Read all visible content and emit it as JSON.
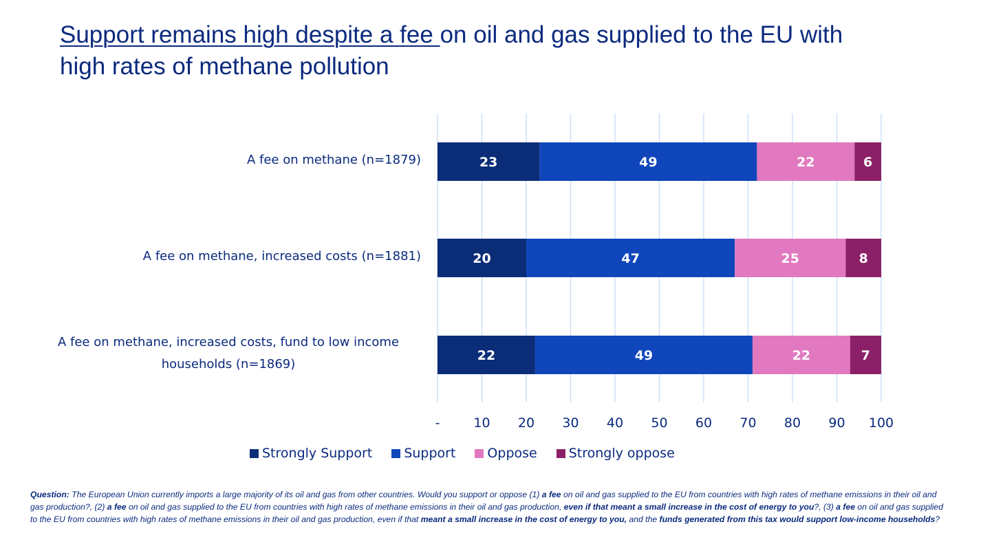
{
  "title": {
    "underlined": "Support remains high despite a fee ",
    "rest": "on oil and gas supplied to the EU with high rates of methane pollution"
  },
  "colors": {
    "strongly_support": "#0b2d78",
    "support": "#1046bb",
    "oppose": "#e279c0",
    "strongly_oppose": "#8c2068",
    "grid": "#cfe0f7",
    "text": "#0b2a7e"
  },
  "chart_data": {
    "type": "bar",
    "orientation": "horizontal",
    "stacked": true,
    "categories": [
      "A fee on methane (n=1879)",
      "A fee on methane, increased costs (n=1881)",
      "A fee on methane, increased costs, fund to low income households (n=1869)"
    ],
    "series": [
      {
        "name": "Strongly Support",
        "values": [
          23,
          20,
          22
        ]
      },
      {
        "name": "Support",
        "values": [
          49,
          47,
          49
        ]
      },
      {
        "name": "Oppose",
        "values": [
          22,
          25,
          22
        ]
      },
      {
        "name": "Strongly oppose",
        "values": [
          6,
          8,
          7
        ]
      }
    ],
    "xlim": [
      0,
      100
    ],
    "xticks": [
      "-",
      "10",
      "20",
      "30",
      "40",
      "50",
      "60",
      "70",
      "80",
      "90",
      "100"
    ],
    "grid": "vertical",
    "legend": "bottom"
  },
  "footnote": [
    {
      "t": "Question:",
      "b": true
    },
    {
      "t": " The European Union currently imports a large majority of its oil and gas from other countries. Would you support or oppose (1) ",
      "b": false
    },
    {
      "t": "a fee",
      "b": true
    },
    {
      "t": " on oil and gas supplied to the EU from countries with high rates of methane emissions in their oil and gas production?, (2) ",
      "b": false
    },
    {
      "t": "a fee",
      "b": true
    },
    {
      "t": " on oil and gas supplied to the EU from countries with high rates of methane emissions in their oil and gas production, ",
      "b": false
    },
    {
      "t": "even if that meant a small increase in the cost of energy to you",
      "b": true
    },
    {
      "t": "?, (3) ",
      "b": false
    },
    {
      "t": "a fee",
      "b": true
    },
    {
      "t": " on oil and gas supplied to the EU from countries with high rates of methane emissions in their oil and gas production, even if that ",
      "b": false
    },
    {
      "t": "meant a small increase in the cost of energy to you,",
      "b": true
    },
    {
      "t": " and the ",
      "b": false
    },
    {
      "t": "funds generated from this tax would support low-income households",
      "b": true
    },
    {
      "t": "?",
      "b": false
    }
  ]
}
